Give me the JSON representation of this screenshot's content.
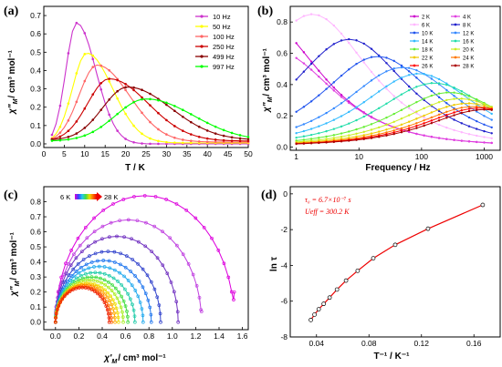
{
  "chart_data": [
    {
      "type": "line",
      "panel_label": "(a)",
      "xlabel": "T / K",
      "ylabel_main": "χ\"",
      "ylabel_sub": "M",
      "ylabel_tail": "/ cm³ mol⁻¹",
      "xlim": [
        0,
        50
      ],
      "ylim": [
        -0.02,
        0.75
      ],
      "xticks": [
        "0",
        "5",
        "10",
        "15",
        "20",
        "25",
        "30",
        "35",
        "40",
        "45",
        "50"
      ],
      "yticks": [
        "0.0",
        "0.1",
        "0.2",
        "0.3",
        "0.4",
        "0.5",
        "0.6",
        "0.7"
      ],
      "legend_position": "top-right",
      "series": [
        {
          "name": "10     Hz",
          "color": "#cc33cc",
          "peak_x": 8.0,
          "peak_y": 0.66,
          "width_left": 3.0,
          "width_right": 4.5,
          "base": 0.0
        },
        {
          "name": "50     Hz",
          "color": "#ffff00",
          "peak_x": 10.5,
          "peak_y": 0.49,
          "width_left": 4.0,
          "width_right": 6.0,
          "base": 0.005
        },
        {
          "name": "100   Hz",
          "color": "#ff6666",
          "peak_x": 13.0,
          "peak_y": 0.42,
          "width_left": 5.0,
          "width_right": 7.5,
          "base": 0.01
        },
        {
          "name": "250   Hz",
          "color": "#cc0000",
          "peak_x": 16.0,
          "peak_y": 0.34,
          "width_left": 6.0,
          "width_right": 9.0,
          "base": 0.015
        },
        {
          "name": "499   Hz",
          "color": "#880000",
          "peak_x": 20.5,
          "peak_y": 0.29,
          "width_left": 7.0,
          "width_right": 10.0,
          "base": 0.02
        },
        {
          "name": "997   Hz",
          "color": "#00ff00",
          "peak_x": 25.0,
          "peak_y": 0.23,
          "width_left": 8.5,
          "width_right": 11.0,
          "base": 0.015
        }
      ]
    },
    {
      "type": "line",
      "panel_label": "(b)",
      "xlabel": "Frequency / Hz",
      "ylabel_main": "χ\"",
      "ylabel_sub": "M",
      "ylabel_tail": "/ cm³ mol⁻¹",
      "xscale": "log",
      "xlim": [
        0.8,
        1800
      ],
      "ylim": [
        -0.02,
        0.9
      ],
      "xticks": [
        "1",
        "10",
        "100",
        "1000"
      ],
      "yticks": [
        "0.0",
        "0.2",
        "0.4",
        "0.6",
        "0.8"
      ],
      "legend_position": "top-right",
      "series": [
        {
          "name": "2 K",
          "color": "#cc00cc",
          "peak_f": 0.3,
          "peak_y": 0.8
        },
        {
          "name": "4 K",
          "color": "#e040e0",
          "peak_f": 0.5,
          "peak_y": 0.6
        },
        {
          "name": "6 K",
          "color": "#ffb6ff",
          "peak_f": 1.8,
          "peak_y": 0.84
        },
        {
          "name": "8 K",
          "color": "#2020cc",
          "peak_f": 7.0,
          "peak_y": 0.68
        },
        {
          "name": "10 K",
          "color": "#2255ee",
          "peak_f": 20.0,
          "peak_y": 0.57
        },
        {
          "name": "12 K",
          "color": "#3388ff",
          "peak_f": 50.0,
          "peak_y": 0.5
        },
        {
          "name": "14 K",
          "color": "#33bbff",
          "peak_f": 90.0,
          "peak_y": 0.46
        },
        {
          "name": "16 K",
          "color": "#22ddaa",
          "peak_f": 160.0,
          "peak_y": 0.4
        },
        {
          "name": "18 K",
          "color": "#66ee33",
          "peak_f": 280.0,
          "peak_y": 0.34
        },
        {
          "name": "20 K",
          "color": "#ccee22",
          "peak_f": 400.0,
          "peak_y": 0.3
        },
        {
          "name": "22 K",
          "color": "#eecc00",
          "peak_f": 550.0,
          "peak_y": 0.27
        },
        {
          "name": "24 K",
          "color": "#ff7700",
          "peak_f": 700.0,
          "peak_y": 0.25
        },
        {
          "name": "26 K",
          "color": "#ff0000",
          "peak_f": 850.0,
          "peak_y": 0.24
        },
        {
          "name": "28 K",
          "color": "#aa0000",
          "peak_f": 1000.0,
          "peak_y": 0.23
        }
      ]
    },
    {
      "type": "scatter",
      "panel_label": "(c)",
      "xlabel_main": "χ'",
      "xlabel_sub": "M",
      "xlabel_tail": "/ cm³ mol⁻¹",
      "ylabel_main": "χ\"",
      "ylabel_sub": "M",
      "ylabel_tail": "/ cm³ mol⁻¹",
      "xlim": [
        -0.1,
        1.65
      ],
      "ylim": [
        -0.05,
        0.9
      ],
      "xticks": [
        "0.0",
        "0.2",
        "0.4",
        "0.6",
        "0.8",
        "1.0",
        "1.2",
        "1.4",
        "1.6"
      ],
      "yticks": [
        "0.0",
        "0.1",
        "0.2",
        "0.3",
        "0.4",
        "0.5",
        "0.6",
        "0.7",
        "0.8"
      ],
      "gradient_label_start": "6 K",
      "gradient_label_end": "28 K",
      "series": [
        {
          "color": "#dd00dd",
          "x0": 0.0,
          "x1": 1.53,
          "peak_y": 0.84,
          "open_end": 0.2
        },
        {
          "color": "#c040e0",
          "x0": 0.0,
          "x1": 1.25,
          "peak_y": 0.68,
          "open_end": 0.07
        },
        {
          "color": "#7030c0",
          "x0": 0.0,
          "x1": 1.05,
          "peak_y": 0.57,
          "open_end": 0.0
        },
        {
          "color": "#3344cc",
          "x0": 0.0,
          "x1": 0.9,
          "peak_y": 0.47,
          "open_end": 0.0
        },
        {
          "color": "#2277ee",
          "x0": 0.0,
          "x1": 0.82,
          "peak_y": 0.41,
          "open_end": 0.0
        },
        {
          "color": "#22aaee",
          "x0": 0.0,
          "x1": 0.75,
          "peak_y": 0.37,
          "open_end": 0.0
        },
        {
          "color": "#22ccaa",
          "x0": 0.0,
          "x1": 0.68,
          "peak_y": 0.33,
          "open_end": 0.0
        },
        {
          "color": "#44dd44",
          "x0": 0.0,
          "x1": 0.62,
          "peak_y": 0.3,
          "open_end": 0.0
        },
        {
          "color": "#aaee22",
          "x0": 0.0,
          "x1": 0.58,
          "peak_y": 0.28,
          "open_end": 0.0
        },
        {
          "color": "#eedd00",
          "x0": 0.0,
          "x1": 0.54,
          "peak_y": 0.26,
          "open_end": 0.0
        },
        {
          "color": "#ffaa00",
          "x0": 0.0,
          "x1": 0.51,
          "peak_y": 0.25,
          "open_end": 0.0
        },
        {
          "color": "#ff6600",
          "x0": 0.0,
          "x1": 0.48,
          "peak_y": 0.24,
          "open_end": 0.0
        },
        {
          "color": "#ee2200",
          "x0": 0.0,
          "x1": 0.46,
          "peak_y": 0.23,
          "open_end": 0.0
        }
      ]
    },
    {
      "type": "scatter",
      "panel_label": "(d)",
      "xlabel": "T⁻¹ / K⁻¹",
      "ylabel": "ln τ",
      "xlim": [
        0.02,
        0.18
      ],
      "ylim": [
        -8,
        0.4
      ],
      "xticks": [
        "0.04",
        "0.08",
        "0.12",
        "0.16"
      ],
      "yticks": [
        "-8",
        "-6",
        "-4",
        "-2",
        "0"
      ],
      "fit_color": "#ee0000",
      "annotation_line1": "τ₀ = 6.7×10⁻⁷ s",
      "annotation_line2": "Ueff = 300.2 K",
      "points": [
        {
          "x": 0.0357,
          "y": -7.05
        },
        {
          "x": 0.0385,
          "y": -6.75
        },
        {
          "x": 0.0417,
          "y": -6.45
        },
        {
          "x": 0.0455,
          "y": -6.15
        },
        {
          "x": 0.05,
          "y": -5.8
        },
        {
          "x": 0.0556,
          "y": -5.35
        },
        {
          "x": 0.0625,
          "y": -4.85
        },
        {
          "x": 0.0714,
          "y": -4.3
        },
        {
          "x": 0.0833,
          "y": -3.6
        },
        {
          "x": 0.1,
          "y": -2.85
        },
        {
          "x": 0.125,
          "y": -1.95
        },
        {
          "x": 0.1667,
          "y": -0.62
        }
      ]
    }
  ]
}
